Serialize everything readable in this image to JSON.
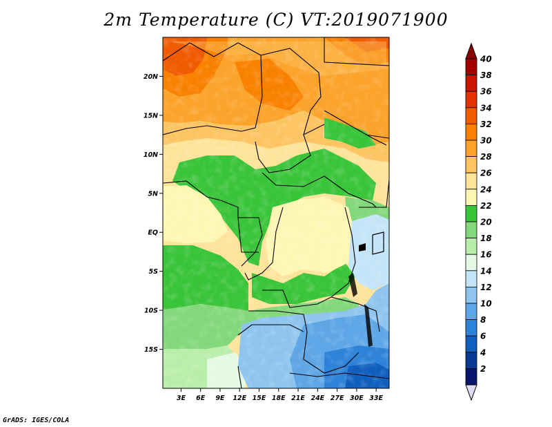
{
  "title": "2m Temperature (C) VT:2019071900",
  "credit": "GrADS: IGES/COLA",
  "map": {
    "lat_ticks": [
      {
        "label": "20N",
        "value": 20
      },
      {
        "label": "15N",
        "value": 15
      },
      {
        "label": "10N",
        "value": 10
      },
      {
        "label": "5N",
        "value": 5
      },
      {
        "label": "EQ",
        "value": 0
      },
      {
        "label": "5S",
        "value": -5
      },
      {
        "label": "10S",
        "value": -10
      },
      {
        "label": "15S",
        "value": -15
      }
    ],
    "lon_ticks": [
      {
        "label": "3E",
        "value": 3
      },
      {
        "label": "6E",
        "value": 6
      },
      {
        "label": "9E",
        "value": 9
      },
      {
        "label": "12E",
        "value": 12
      },
      {
        "label": "15E",
        "value": 15
      },
      {
        "label": "18E",
        "value": 18
      },
      {
        "label": "21E",
        "value": 21
      },
      {
        "label": "24E",
        "value": 24
      },
      {
        "label": "27E",
        "value": 27
      },
      {
        "label": "30E",
        "value": 30
      },
      {
        "label": "33E",
        "value": 33
      }
    ],
    "lon_range": [
      0.2,
      35
    ],
    "lat_range": [
      -20,
      25
    ]
  },
  "colorbar": {
    "levels": [
      "40",
      "38",
      "36",
      "34",
      "32",
      "30",
      "28",
      "26",
      "24",
      "22",
      "20",
      "18",
      "16",
      "14",
      "12",
      "10",
      "8",
      "6",
      "4",
      "2"
    ],
    "colors": [
      "#a50000",
      "#c81400",
      "#e13200",
      "#f05a00",
      "#f98100",
      "#fba32a",
      "#fdc462",
      "#fee39a",
      "#fef7b4",
      "#3ac43a",
      "#82d87a",
      "#b8eeaa",
      "#e4fae4",
      "#c4e4f8",
      "#8ec4ee",
      "#5ea6e6",
      "#2e82d8",
      "#105fbe",
      "#0a3a92",
      "#08166a"
    ],
    "top_color": "#8a0000",
    "bottom_color": "#e0dcf4"
  }
}
